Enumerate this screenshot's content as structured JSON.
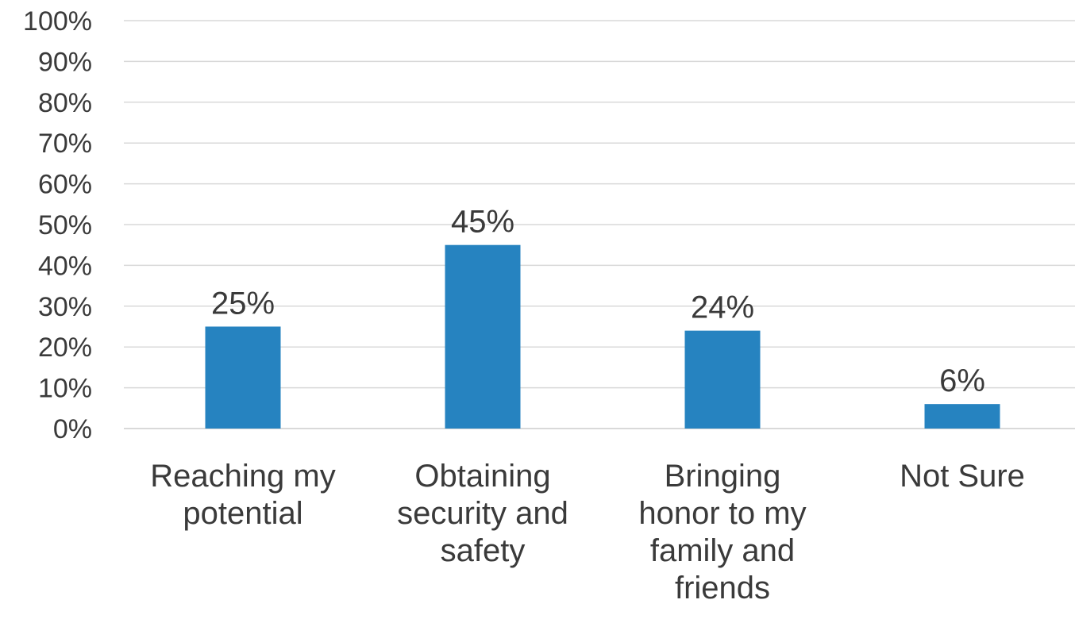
{
  "chart_data": {
    "type": "bar",
    "title": "",
    "xlabel": "",
    "ylabel": "",
    "categories": [
      [
        "Reaching my",
        "potential"
      ],
      [
        "Obtaining",
        "security and",
        "safety"
      ],
      [
        "Bringing",
        "honor to my",
        "family and",
        "friends"
      ],
      [
        "Not Sure"
      ]
    ],
    "values": [
      25,
      45,
      24,
      6
    ],
    "data_labels": [
      "25%",
      "45%",
      "24%",
      "6%"
    ],
    "ylim": [
      0,
      100
    ],
    "yticks": [
      0,
      10,
      20,
      30,
      40,
      50,
      60,
      70,
      80,
      90,
      100
    ],
    "ytick_labels": [
      "0%",
      "10%",
      "20%",
      "30%",
      "40%",
      "50%",
      "60%",
      "70%",
      "80%",
      "90%",
      "100%"
    ],
    "grid": true,
    "legend": "none",
    "bar_color": "#2683c0"
  }
}
